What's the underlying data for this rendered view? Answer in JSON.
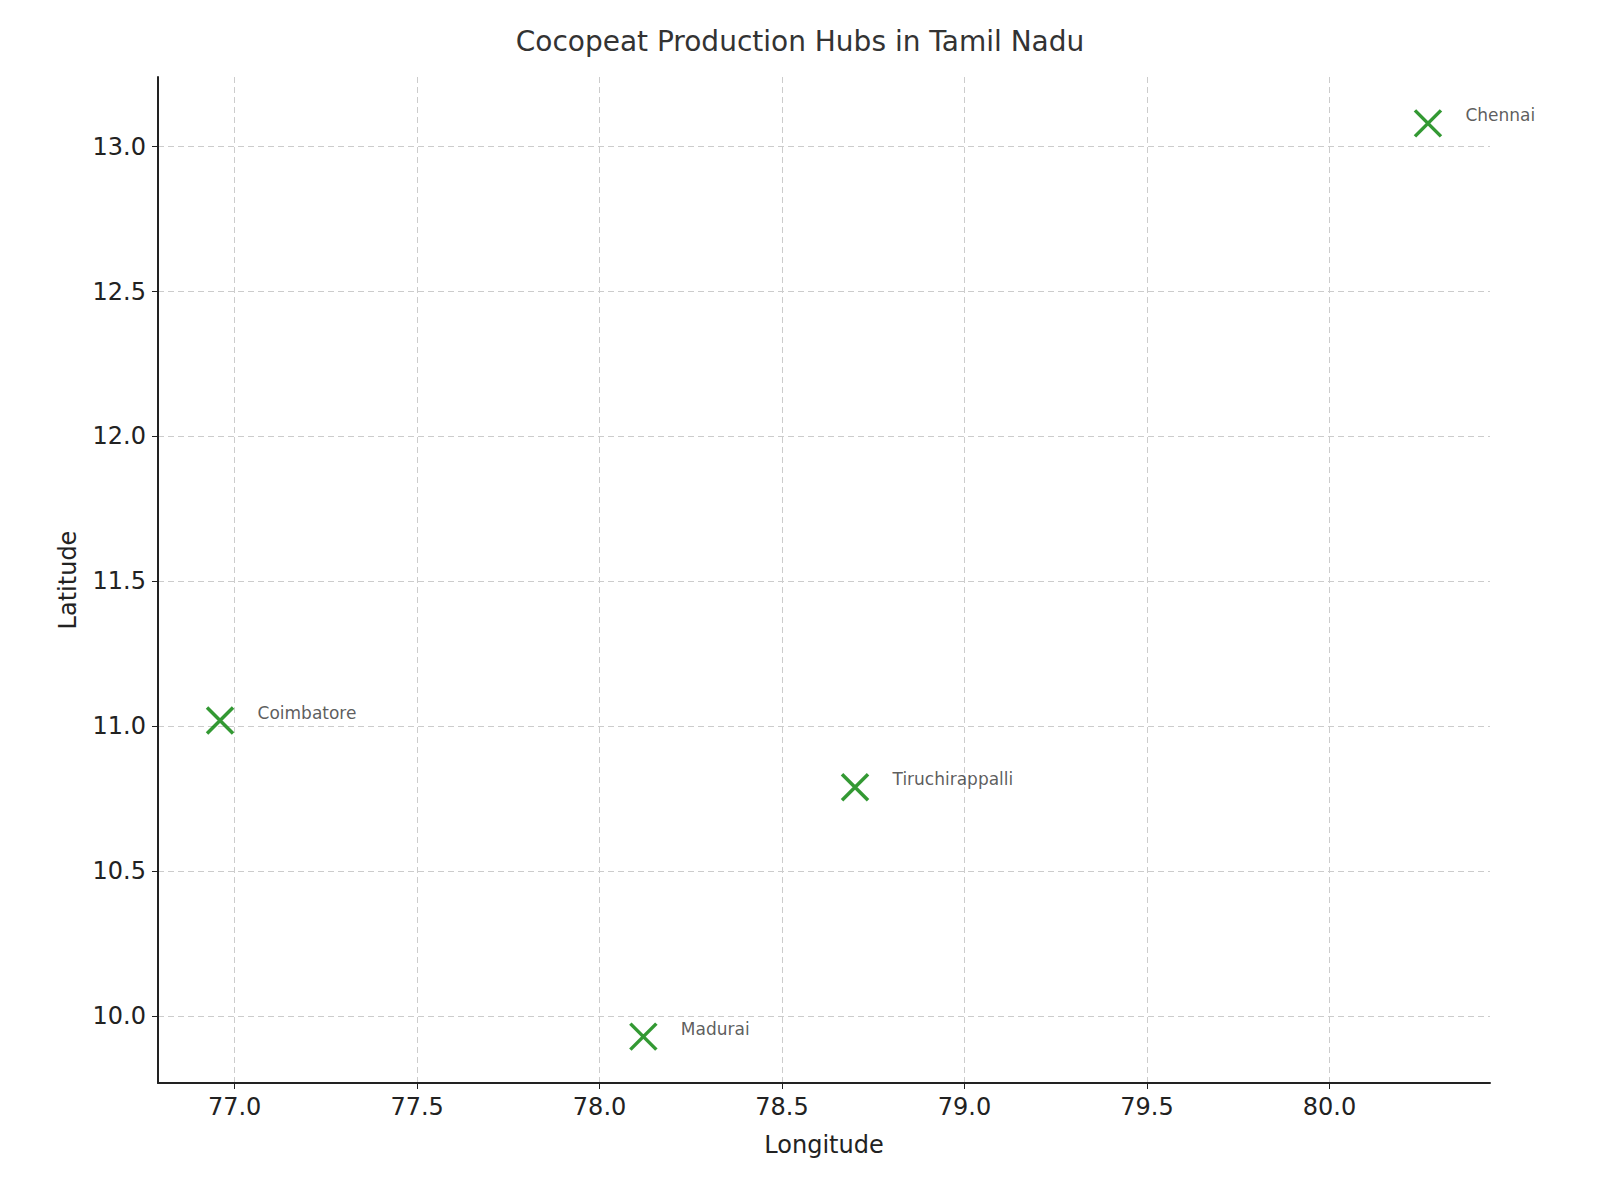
{
  "chart_data": {
    "type": "scatter",
    "title": "Cocopeat Production Hubs in Tamil Nadu",
    "x_label": "Longitude",
    "y_label": "Latitude",
    "x": [
      80.27,
      76.96,
      78.7,
      78.12
    ],
    "values": [
      13.08,
      11.02,
      10.79,
      9.93
    ],
    "labels": [
      "Chennai",
      "Coimbatore",
      "Tiruchirappalli",
      "Madurai"
    ],
    "color": "#008000",
    "marker": "x",
    "xlim": [
      76.79,
      80.44
    ],
    "xticks": [
      {
        "value": 77,
        "label": "77.0"
      },
      77.5,
      {
        "value": 78,
        "label": "78.0"
      },
      78.5,
      {
        "value": 79,
        "label": "79.0"
      },
      79.5,
      {
        "value": 80,
        "label": "80.0"
      }
    ],
    "ylim": [
      9.77,
      13.24
    ],
    "yticks": [
      {
        "value": 10,
        "label": "10.0"
      },
      10.5,
      {
        "value": 11,
        "label": "11.0"
      },
      11.5,
      {
        "value": 12,
        "label": "12.0"
      },
      12.5,
      {
        "value": 13,
        "label": "13.0"
      }
    ],
    "grid": true
  }
}
